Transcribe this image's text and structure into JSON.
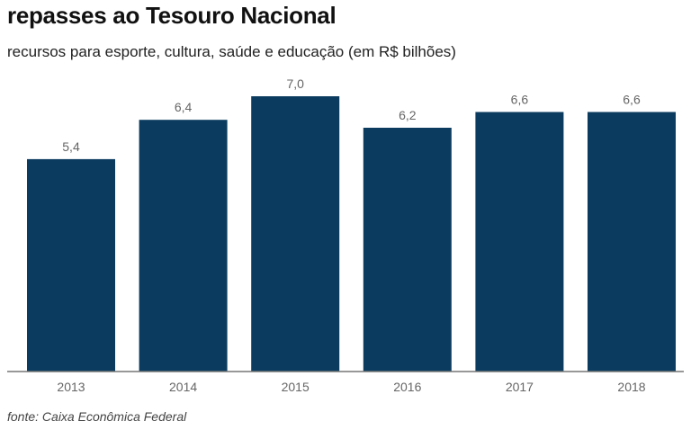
{
  "title": "repasses ao Tesouro Nacional",
  "subtitle": "recursos para esporte, cultura, saúde e educação (em R$ bilhões)",
  "source": "fonte: Caixa Econômica Federal",
  "colors": {
    "bar": "#0b3b5f"
  },
  "chart_data": {
    "type": "bar",
    "title": "repasses ao Tesouro Nacional",
    "subtitle": "recursos para esporte, cultura, saúde e educação (em R$ bilhões)",
    "xlabel": "",
    "ylabel": "",
    "categories": [
      "2013",
      "2014",
      "2015",
      "2016",
      "2017",
      "2018"
    ],
    "values": [
      5.4,
      6.4,
      7.0,
      6.2,
      6.6,
      6.6
    ],
    "value_labels": [
      "5,4",
      "6,4",
      "7,0",
      "6,2",
      "6,6",
      "6,6"
    ],
    "ylim": [
      0,
      7.0
    ],
    "grid": false,
    "legend": "none"
  }
}
